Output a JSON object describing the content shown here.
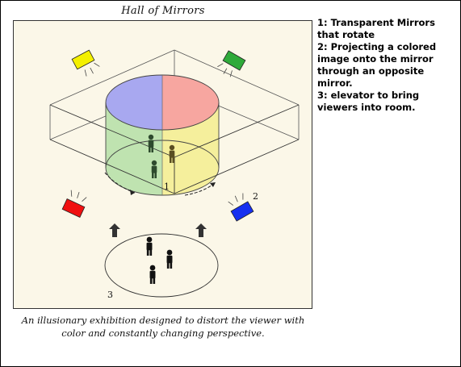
{
  "title": "Hall of Mirrors",
  "caption": "An illusionary exhibition designed to distort the viewer with color and constantly changing perspective.",
  "notes": [
    "1: Transparent Mirrors that rotate",
    "2: Projecting a colored image onto the mirror through an opposite mirror.",
    "3: elevator to bring viewers into room."
  ],
  "labels": {
    "mirrors": "1",
    "projector": "2",
    "elevator": "3"
  },
  "colors": {
    "panel_bg": "#fbf7e8",
    "quadrant_blue": "#a8a8f0",
    "quadrant_red": "#f7a6a0",
    "quadrant_green": "#bfe3b0",
    "quadrant_yellow": "#f5ef9c",
    "projector_yellow": "#f4f000",
    "projector_green": "#2faa3a",
    "projector_red": "#f01010",
    "projector_blue": "#1630f0"
  }
}
